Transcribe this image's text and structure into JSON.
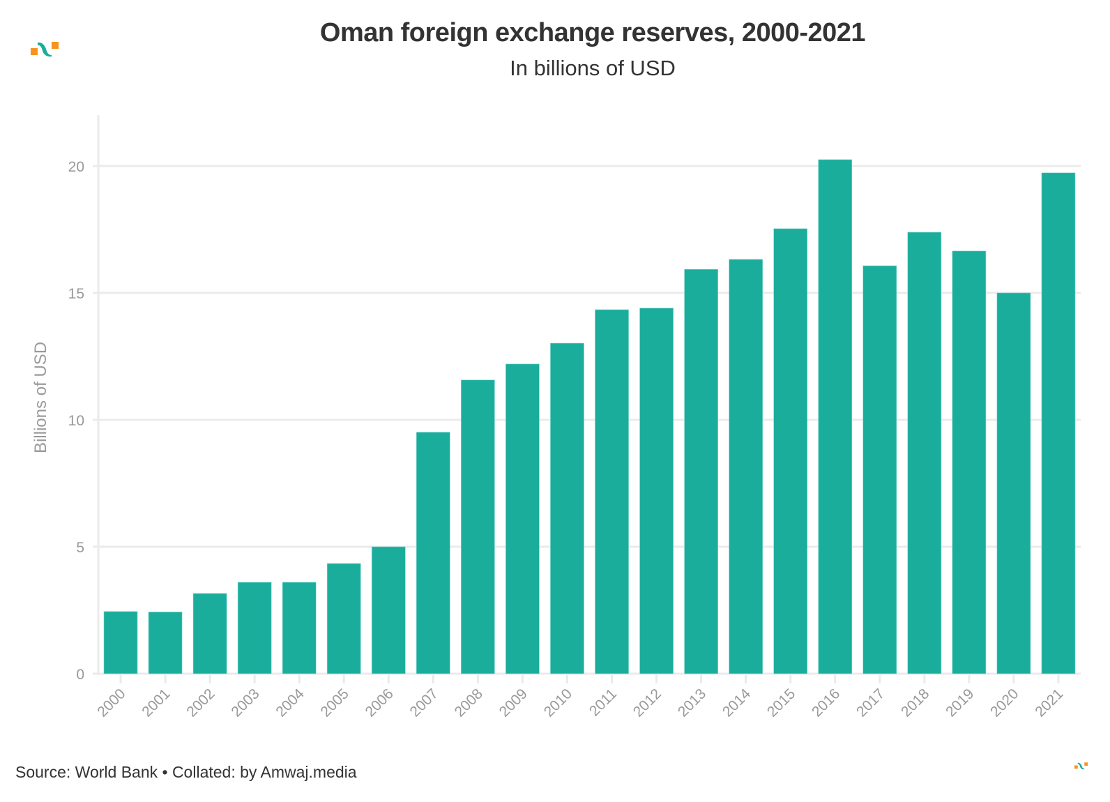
{
  "header": {
    "title": "Oman foreign exchange reserves, 2000-2021",
    "subtitle": "In billions of USD"
  },
  "footer": {
    "source": "Source: World Bank • Collated: by Amwaj.media"
  },
  "logo": {
    "name": "amwaj-logo-icon",
    "colors": {
      "square": "#F7941D",
      "wave": "#1AAD9A"
    }
  },
  "colors": {
    "bar": "#1AAD9C",
    "grid": "#EBEBEB",
    "tick_text": "#999999",
    "title_text": "#333333"
  },
  "chart_data": {
    "type": "bar",
    "title": "Oman foreign exchange reserves, 2000-2021",
    "subtitle": "In billions of USD",
    "xlabel": "",
    "ylabel": "Billions of USD",
    "ylim": [
      0,
      22
    ],
    "yticks": [
      0,
      5,
      10,
      15,
      20
    ],
    "grid": true,
    "legend": "none",
    "categories": [
      "2000",
      "2001",
      "2002",
      "2003",
      "2004",
      "2005",
      "2006",
      "2007",
      "2008",
      "2009",
      "2010",
      "2011",
      "2012",
      "2013",
      "2014",
      "2015",
      "2016",
      "2017",
      "2018",
      "2019",
      "2020",
      "2021"
    ],
    "values": [
      2.45,
      2.43,
      3.16,
      3.6,
      3.6,
      4.34,
      5.0,
      9.51,
      11.57,
      12.2,
      13.02,
      14.34,
      14.4,
      15.93,
      16.32,
      17.53,
      20.25,
      16.07,
      17.39,
      16.65,
      15.0,
      19.73
    ]
  }
}
